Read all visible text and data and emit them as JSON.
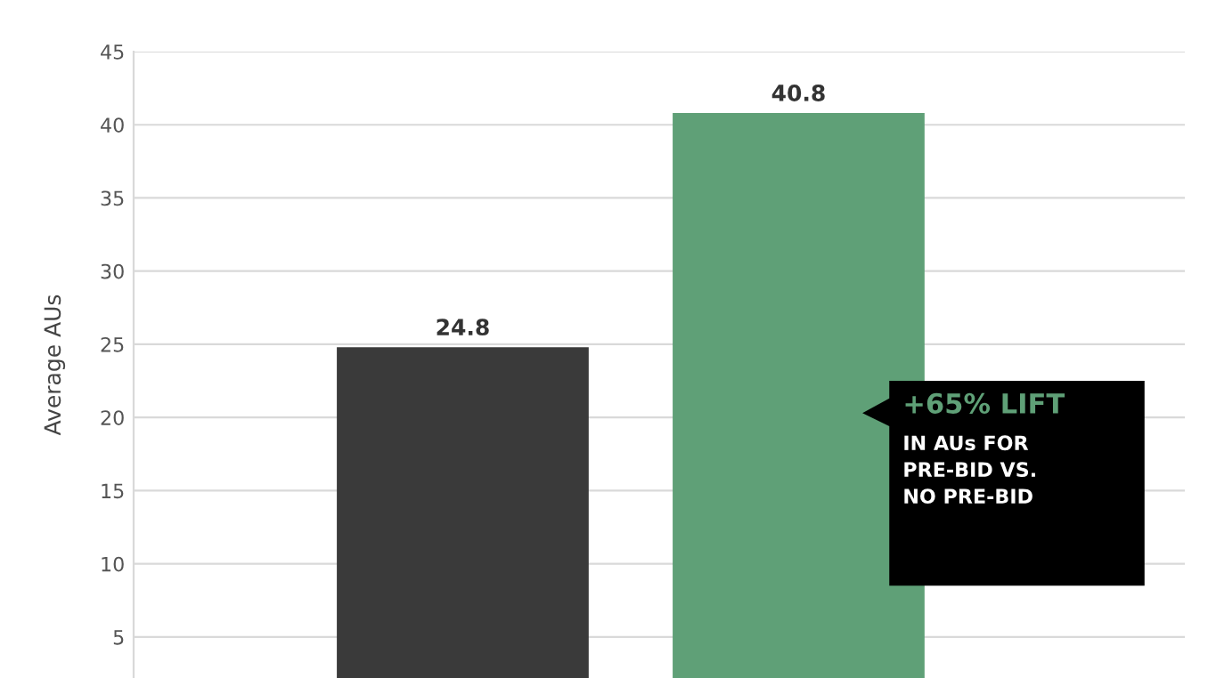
{
  "chart_data": {
    "type": "bar",
    "ylabel": "Average AUs",
    "categories": [
      null,
      null
    ],
    "values": [
      24.8,
      40.8
    ],
    "colors": [
      "#3a3a3a",
      "#5fa077"
    ],
    "ylim": [
      2.2,
      45
    ],
    "yticks": [
      5,
      10,
      15,
      20,
      25,
      30,
      35,
      40,
      45
    ],
    "grid": "y",
    "tick_labels": "y",
    "data_labels": true,
    "annotations": [
      "+65% LIFT",
      "IN AUs FOR\nPRE-BID VS.\nNO PRE-BID"
    ]
  }
}
